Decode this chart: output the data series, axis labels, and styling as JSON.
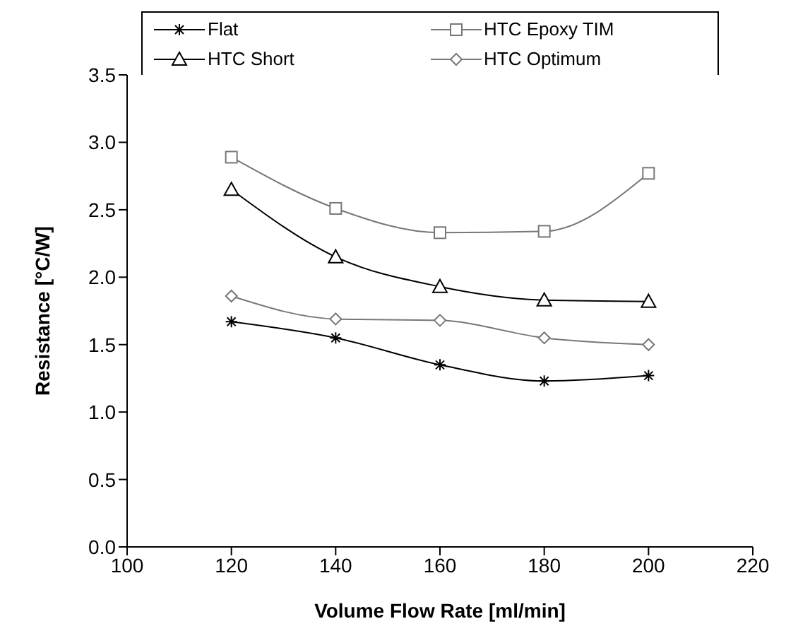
{
  "chart_data": {
    "type": "line",
    "xlabel": "Volume Flow Rate [ml/min]",
    "ylabel": "Resistance [°C/W]",
    "x": [
      120,
      140,
      160,
      180,
      200
    ],
    "xlim": [
      100,
      220
    ],
    "xticks": [
      100,
      120,
      140,
      160,
      180,
      200,
      220
    ],
    "ylim": [
      0,
      3.5
    ],
    "yticks": [
      {
        "value": 0,
        "label": "0.0"
      },
      0.5,
      {
        "value": 1,
        "label": "1.0"
      },
      1.5,
      {
        "value": 2,
        "label": "2.0"
      },
      2.5,
      {
        "value": 3,
        "label": "3.0"
      },
      3.5
    ],
    "grid": false,
    "legend": "top",
    "line_style": "solid",
    "series": [
      {
        "name": "Flat",
        "color": "#000000",
        "marker": "cross",
        "values": [
          1.67,
          1.55,
          1.35,
          1.23,
          1.27
        ]
      },
      {
        "name": "HTC Epoxy TIM",
        "color": "#777777",
        "marker": "square",
        "values": [
          2.89,
          2.51,
          2.33,
          2.34,
          2.77
        ]
      },
      {
        "name": "HTC Short",
        "color": "#000000",
        "marker": "triangle",
        "values": [
          2.65,
          2.15,
          1.93,
          1.83,
          1.82
        ]
      },
      {
        "name": "HTC Optimum",
        "color": "#777777",
        "marker": "diamond",
        "values": [
          1.86,
          1.69,
          1.68,
          1.55,
          1.5
        ]
      }
    ]
  }
}
